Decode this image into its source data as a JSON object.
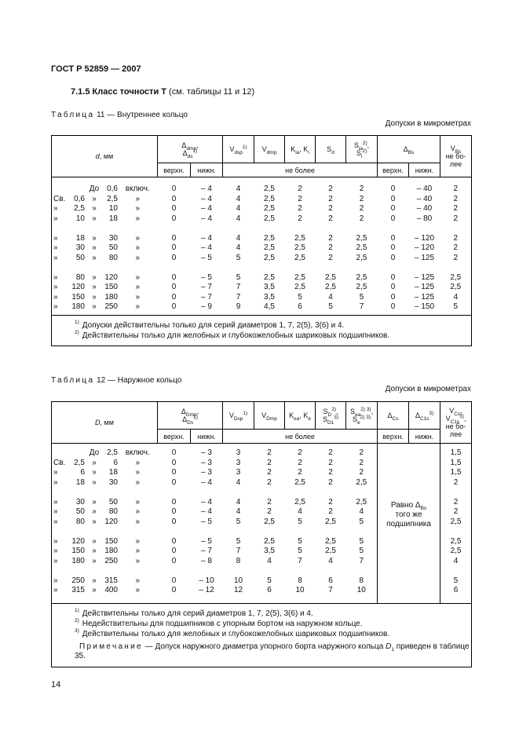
{
  "header": {
    "title": "ГОСТ Р 52859 — 2007"
  },
  "section": {
    "number": "7.1.5",
    "title": "Класс точности Т",
    "reference": "(см. таблицы 11 и 12)"
  },
  "tables": [
    {
      "label": "Таблица",
      "title": "11 — Внутреннее кольцо",
      "units": "Допуски в микрометрах",
      "header": [
        [
          [
            {
              "i": "d"
            },
            ", мм"
          ]
        ],
        [
          [
            "Δ",
            {
              "sub": "dmp"
            },
            ","
          ],
          [
            "Δ",
            {
              "sub": "ds"
            },
            {
              "sup": "1)"
            }
          ]
        ],
        [
          [
            "V",
            {
              "sub": "dsp"
            },
            {
              "sup": "1)"
            }
          ]
        ],
        [
          [
            "V",
            {
              "sub": "dmp"
            }
          ]
        ],
        [
          [
            "K",
            {
              "sub": "ia"
            },
            ", K",
            {
              "sub": "i"
            }
          ]
        ],
        [
          [
            "S",
            {
              "sub": "d"
            }
          ]
        ],
        [
          [
            "S",
            {
              "sub": "ia"
            },
            {
              "sup": "2)"
            },
            ","
          ],
          [
            "S",
            {
              "sub": "i"
            },
            {
              "sup": "2)"
            }
          ]
        ],
        [
          [
            "Δ",
            {
              "sub": "Bs"
            }
          ]
        ],
        [
          [
            "V",
            {
              "sub": "Bs"
            }
          ],
          [
            "не бо-"
          ],
          [
            "лее"
          ]
        ]
      ],
      "subheader": [
        "верхн.",
        "нижн.",
        "не более",
        "верхн.",
        "нижн."
      ],
      "groups": [
        [
          {
            "size": [
              null,
              null,
              "До",
              "0,6",
              "включ."
            ],
            "values": [
              "0",
              "– 4",
              "4",
              "2,5",
              "2",
              "2",
              "2",
              "0",
              "– 40",
              "2"
            ]
          },
          {
            "size": [
              "Св.",
              "0,6",
              "»",
              "2,5",
              "»"
            ],
            "values": [
              "0",
              "– 4",
              "4",
              "2,5",
              "2",
              "2",
              "2",
              "0",
              "– 40",
              "2"
            ]
          },
          {
            "size": [
              "»",
              "2,5",
              "»",
              "10",
              "»"
            ],
            "values": [
              "0",
              "– 4",
              "4",
              "2,5",
              "2",
              "2",
              "2",
              "0",
              "– 40",
              "2"
            ]
          },
          {
            "size": [
              "»",
              "10",
              "»",
              "18",
              "»"
            ],
            "values": [
              "0",
              "– 4",
              "4",
              "2,5",
              "2",
              "2",
              "2",
              "0",
              "– 80",
              "2"
            ]
          }
        ],
        [
          {
            "size": [
              "»",
              "18",
              "»",
              "30",
              "»"
            ],
            "values": [
              "0",
              "– 4",
              "4",
              "2,5",
              "2,5",
              "2",
              "2,5",
              "0",
              "– 120",
              "2"
            ]
          },
          {
            "size": [
              "»",
              "30",
              "»",
              "50",
              "»"
            ],
            "values": [
              "0",
              "– 4",
              "4",
              "2,5",
              "2,5",
              "2",
              "2,5",
              "0",
              "– 120",
              "2"
            ]
          },
          {
            "size": [
              "»",
              "50",
              "»",
              "80",
              "»"
            ],
            "values": [
              "0",
              "– 5",
              "5",
              "2,5",
              "2,5",
              "2",
              "2,5",
              "0",
              "– 125",
              "2"
            ]
          }
        ],
        [
          {
            "size": [
              "»",
              "80",
              "»",
              "120",
              "»"
            ],
            "values": [
              "0",
              "– 5",
              "5",
              "2,5",
              "2,5",
              "2,5",
              "2,5",
              "0",
              "– 125",
              "2,5"
            ]
          },
          {
            "size": [
              "»",
              "120",
              "»",
              "150",
              "»"
            ],
            "values": [
              "0",
              "– 7",
              "7",
              "3,5",
              "2,5",
              "2,5",
              "2,5",
              "0",
              "– 125",
              "2,5"
            ]
          },
          {
            "size": [
              "»",
              "150",
              "»",
              "180",
              "»"
            ],
            "values": [
              "0",
              "– 7",
              "7",
              "3,5",
              "5",
              "4",
              "5",
              "0",
              "– 125",
              "4"
            ]
          },
          {
            "size": [
              "»",
              "180",
              "»",
              "250",
              "»"
            ],
            "values": [
              "0",
              "– 9",
              "9",
              "4,5",
              "6",
              "5",
              "7",
              "0",
              "– 150",
              "5"
            ]
          }
        ]
      ],
      "footnotes": [
        {
          "mark": "1)",
          "text": "Допуски действительны только для серий диаметров 1, 7, 2(5), 3(6) и 4."
        },
        {
          "mark": "2)",
          "text": "Действительны только для желобных и глубокожелобных шариковых подшипников."
        }
      ]
    },
    {
      "label": "Таблица",
      "title": "12 — Наружное кольцо",
      "units": "Допуски в микрометрах",
      "header": [
        [
          [
            {
              "i": "D"
            },
            ", мм"
          ]
        ],
        [
          [
            "Δ",
            {
              "sub": "Dmp"
            },
            ","
          ],
          [
            "Δ",
            {
              "sub": "Ds"
            },
            {
              "sup": "1)"
            }
          ]
        ],
        [
          [
            "V",
            {
              "sub": "Dsp"
            },
            {
              "sup": "1)"
            }
          ]
        ],
        [
          [
            "V",
            {
              "sub": "Dmp"
            }
          ]
        ],
        [
          [
            "K",
            {
              "sub": "ea"
            },
            ", K",
            {
              "sub": "e"
            }
          ]
        ],
        [
          [
            "S",
            {
              "sub": "D"
            },
            {
              "sup": "2)"
            },
            ","
          ],
          [
            "S",
            {
              "sub": "D1"
            },
            {
              "sup": "3)"
            }
          ]
        ],
        [
          [
            "S",
            {
              "sub": "ea"
            },
            {
              "sup": "2) 3)"
            },
            ","
          ],
          [
            "S",
            {
              "sub": "e"
            },
            {
              "sup": "2) 3)"
            }
          ]
        ],
        [
          [
            "Δ",
            {
              "sub": "Cs"
            }
          ]
        ],
        [
          [
            "Δ",
            {
              "sub": "C1s"
            },
            {
              "sup": "3)"
            }
          ]
        ],
        [
          [
            "V",
            {
              "sub": "Cs"
            },
            ","
          ],
          [
            "V",
            {
              "sub": "C1s"
            },
            {
              "sup": "3)"
            },
            ","
          ],
          [
            "не бо-"
          ],
          [
            "лее"
          ]
        ]
      ],
      "subheader": [
        "верхн.",
        "нижн.",
        "не более",
        "верхн.",
        "нижн."
      ],
      "merged": [
        [
          "Равно Δ",
          {
            "sub": "Bs"
          }
        ],
        [
          "того же"
        ],
        [
          "подшипника"
        ]
      ],
      "groups": [
        [
          {
            "size": [
              null,
              null,
              "До",
              "2,5",
              "включ."
            ],
            "values": [
              "0",
              "– 3",
              "3",
              "2",
              "2",
              "2",
              "2",
              "1,5"
            ]
          },
          {
            "size": [
              "Св.",
              "2,5",
              "»",
              "6",
              "»"
            ],
            "values": [
              "0",
              "– 3",
              "3",
              "2",
              "2",
              "2",
              "2",
              "1,5"
            ]
          },
          {
            "size": [
              "»",
              "6",
              "»",
              "18",
              "»"
            ],
            "values": [
              "0",
              "– 3",
              "3",
              "2",
              "2",
              "2",
              "2",
              "1,5"
            ]
          },
          {
            "size": [
              "»",
              "18",
              "»",
              "30",
              "»"
            ],
            "values": [
              "0",
              "– 4",
              "4",
              "2",
              "2,5",
              "2",
              "2,5",
              "2"
            ]
          }
        ],
        [
          {
            "size": [
              "»",
              "30",
              "»",
              "50",
              "»"
            ],
            "values": [
              "0",
              "– 4",
              "4",
              "2",
              "2,5",
              "2",
              "2,5",
              "2"
            ]
          },
          {
            "size": [
              "»",
              "50",
              "»",
              "80",
              "»"
            ],
            "values": [
              "0",
              "– 4",
              "4",
              "2",
              "4",
              "2",
              "4",
              "2"
            ]
          },
          {
            "size": [
              "»",
              "80",
              "»",
              "120",
              "»"
            ],
            "values": [
              "0",
              "– 5",
              "5",
              "2,5",
              "5",
              "2,5",
              "5",
              "2,5"
            ]
          }
        ],
        [
          {
            "size": [
              "»",
              "120",
              "»",
              "150",
              "»"
            ],
            "values": [
              "0",
              "– 5",
              "5",
              "2,5",
              "5",
              "2,5",
              "5",
              "2,5"
            ]
          },
          {
            "size": [
              "»",
              "150",
              "»",
              "180",
              "»"
            ],
            "values": [
              "0",
              "– 7",
              "7",
              "3,5",
              "5",
              "2,5",
              "5",
              "2,5"
            ]
          },
          {
            "size": [
              "»",
              "180",
              "»",
              "250",
              "»"
            ],
            "values": [
              "0",
              "– 8",
              "8",
              "4",
              "7",
              "4",
              "7",
              "4"
            ]
          }
        ],
        [
          {
            "size": [
              "»",
              "250",
              "»",
              "315",
              "»"
            ],
            "values": [
              "0",
              "– 10",
              "10",
              "5",
              "8",
              "6",
              "8",
              "5"
            ]
          },
          {
            "size": [
              "»",
              "315",
              "»",
              "400",
              "»"
            ],
            "values": [
              "0",
              "– 12",
              "12",
              "6",
              "10",
              "7",
              "10",
              "6"
            ]
          }
        ]
      ],
      "footnotes": [
        {
          "mark": "1)",
          "text": "Действительны только для серий диаметров 1, 7, 2(5), 3(6) и 4."
        },
        {
          "mark": "2)",
          "text": "Недействительны для подшипников с упорным бортом на наружном кольце."
        },
        {
          "mark": "3)",
          "text": "Действительны только для желобных и глубокожелобных шариковых подшипников."
        }
      ],
      "note": {
        "label": "Примечание",
        "text": [
          "— Допуск наружного диаметра упорного борта наружного кольца ",
          {
            "i": "D"
          },
          {
            "sub": "1"
          },
          " приведен в таблице 35."
        ]
      }
    }
  ],
  "page_number": "14"
}
